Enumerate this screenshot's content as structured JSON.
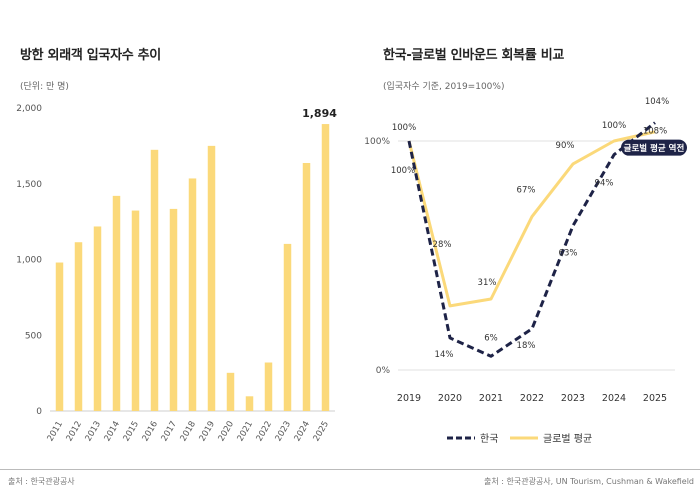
{
  "colors": {
    "bar": "#FBD97A",
    "korea_line": "#1E2347",
    "global_line": "#FBD97A",
    "badge": "#1E2347",
    "grid": "#e2e2e2"
  },
  "left": {
    "title": "방한 외래객 입국자수 추이",
    "unit_label": "(단위: 만 명)"
  },
  "right": {
    "title": "한국-글로벌 인바운드 회복률 비교",
    "unit_label": "(입국자수 기준, 2019=100%)",
    "badge": "글로벌 평균 역전"
  },
  "footer": {
    "source_left": "출처 : 한국관광공사",
    "source_right": "출처 : 한국관광공사, UN Tourism, Cushman & Wakefield"
  },
  "chart_data": [
    {
      "type": "bar",
      "categories": [
        "2011",
        "2012",
        "2013",
        "2014",
        "2015",
        "2016",
        "2017",
        "2018",
        "2019",
        "2020",
        "2021",
        "2022",
        "2023",
        "2024",
        "2025"
      ],
      "values": [
        980,
        1114,
        1218,
        1420,
        1323,
        1724,
        1334,
        1535,
        1750,
        252,
        97,
        320,
        1103,
        1637,
        1894
      ],
      "ylim": [
        0,
        2000
      ],
      "yticks": [
        "0",
        "500",
        "1,000",
        "1,500",
        "2,000"
      ],
      "highlight_label": "1,894",
      "grid": false
    },
    {
      "type": "line",
      "x": [
        "2019",
        "2020",
        "2021",
        "2022",
        "2023",
        "2024",
        "2025"
      ],
      "ylim": [
        0,
        100
      ],
      "yticks": [
        "0%",
        "100%"
      ],
      "series": [
        {
          "name": "한국",
          "values": [
            100,
            14,
            6,
            18,
            63,
            94,
            108
          ],
          "labels": [
            "100%",
            "14%",
            "6%",
            "18%",
            "63%",
            "94%",
            "108%"
          ],
          "style": "dashed"
        },
        {
          "name": "글로벌 평균",
          "values": [
            100,
            28,
            31,
            67,
            90,
            100,
            104
          ],
          "labels": [
            "100%",
            "28%",
            "31%",
            "67%",
            "90%",
            "100%",
            "104%"
          ],
          "style": "solid"
        }
      ],
      "legend": "bottom"
    }
  ]
}
